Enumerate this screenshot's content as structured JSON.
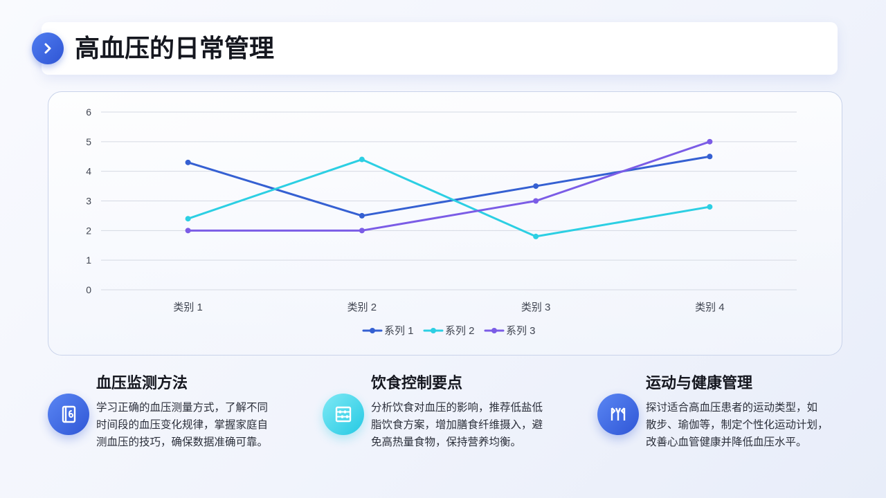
{
  "header": {
    "title": "高血压的日常管理",
    "badge_icon": "chevron-right-icon"
  },
  "chart_data": {
    "type": "line",
    "categories": [
      "类别 1",
      "类别 2",
      "类别 3",
      "类别 4"
    ],
    "series": [
      {
        "name": "系列 1",
        "values": [
          4.3,
          2.5,
          3.5,
          4.5
        ],
        "color": "#3560d2"
      },
      {
        "name": "系列 2",
        "values": [
          2.4,
          4.4,
          1.8,
          2.8
        ],
        "color": "#2ccfe3"
      },
      {
        "name": "系列 3",
        "values": [
          2,
          2,
          3,
          5
        ],
        "color": "#7b5ce6"
      }
    ],
    "yticks": [
      "0",
      "1",
      "2",
      "3",
      "4",
      "5",
      "6"
    ],
    "ylim": [
      0,
      6
    ],
    "grid": true,
    "legend": "bottom-center",
    "title": "",
    "xlabel": "",
    "ylabel": ""
  },
  "features": [
    {
      "title": "血压监测方法",
      "icon": "notebook-icon",
      "accent": "#2f56d6",
      "lines": [
        "学习正确的血压测量方式，了解不同",
        "时间段的血压变化规律，掌握家庭自",
        "测血压的技巧，确保数据准确可靠。"
      ]
    },
    {
      "title": "饮食控制要点",
      "icon": "abacus-icon",
      "accent": "#24c9e3",
      "lines": [
        "分析饮食对血压的影响，推荐低盐低",
        "脂饮食方案，增加膳食纤维摄入，避",
        "免高热量食物，保持营养均衡。"
      ]
    },
    {
      "title": "运动与健康管理",
      "icon": "fitness-icon",
      "accent": "#2f56d6",
      "lines": [
        "探讨适合高血压患者的运动类型，如",
        "散步、瑜伽等，制定个性化运动计划，",
        "改善心血管健康并降低血压水平。"
      ]
    }
  ]
}
